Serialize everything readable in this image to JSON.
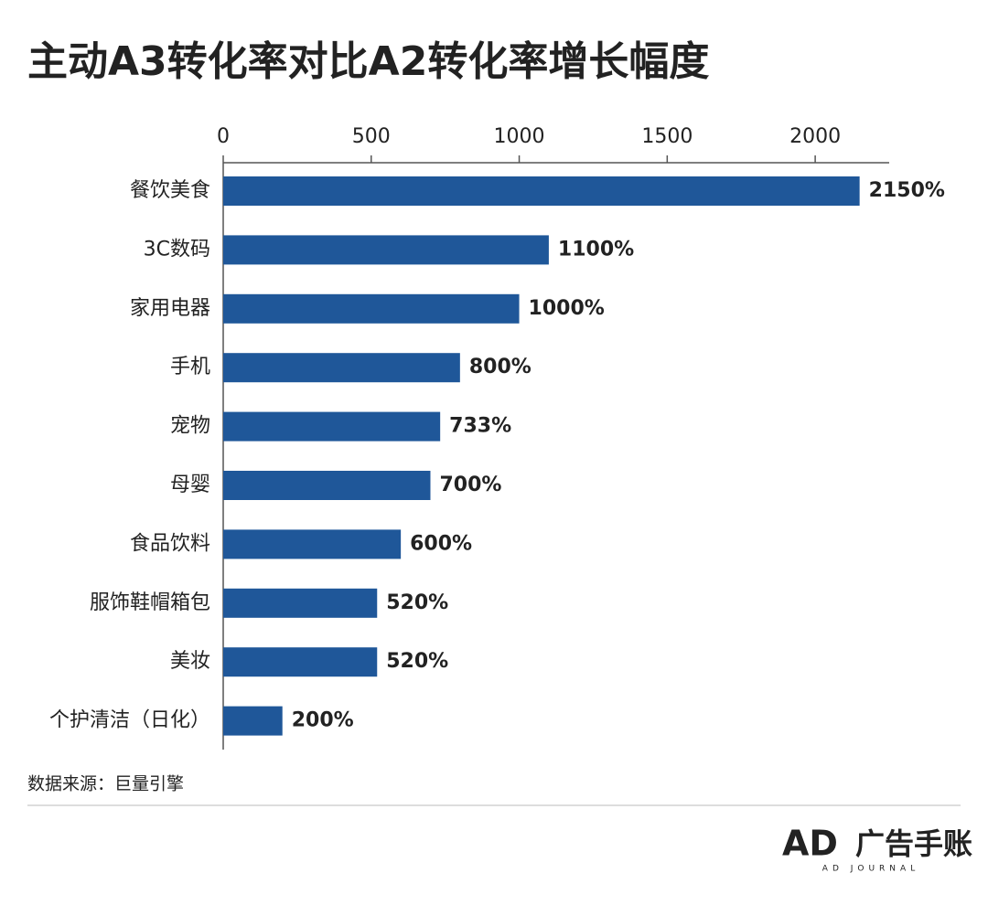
{
  "chart_data": {
    "type": "barh",
    "title": "主动A3转化率对比A2转化率增长幅度",
    "categories": [
      "餐饮美食",
      "3C数码",
      "家用电器",
      "手机",
      "宠物",
      "母婴",
      "食品饮料",
      "服饰鞋帽箱包",
      "美妆",
      "个护清洁（日化）"
    ],
    "values": [
      2150,
      1100,
      1000,
      800,
      733,
      700,
      600,
      520,
      520,
      200
    ],
    "value_labels": [
      "2150%",
      "1100%",
      "1000%",
      "800%",
      "733%",
      "700%",
      "600%",
      "520%",
      "520%",
      "200%"
    ],
    "color": "#1f5799",
    "xlim": [
      0,
      2250
    ],
    "xticks": [
      0,
      500,
      1000,
      1500,
      2000
    ]
  },
  "footer": {
    "source": "数据来源：巨量引擎",
    "logo_mark": "AD",
    "logo_name": "广告手账",
    "logo_sub": "AD JOURNAL"
  }
}
